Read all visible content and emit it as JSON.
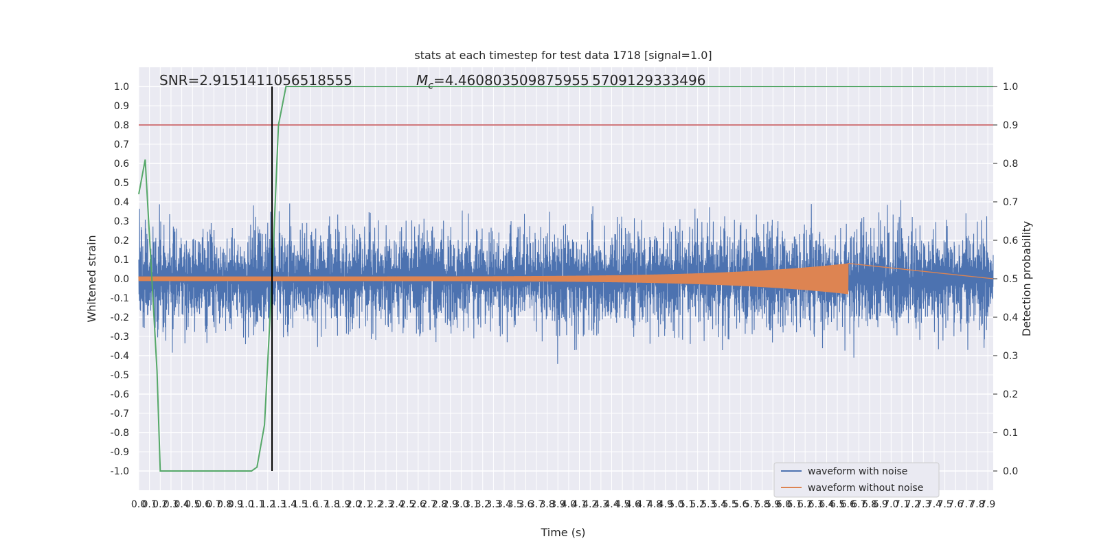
{
  "chart_data": {
    "type": "line",
    "title": "stats at each timestep for test data 1718 [signal=1.0]",
    "xlabel": "Time (s)",
    "ylabel": "Whitened strain",
    "y2label": "Detection probability",
    "xlim": [
      0.0,
      7.95
    ],
    "ylim": [
      -1.1,
      1.1
    ],
    "y2lim": [
      -0.05,
      1.05
    ],
    "x_ticks": [
      0.0,
      0.1,
      0.2,
      0.3,
      0.4,
      0.5,
      0.6,
      0.7,
      0.8,
      0.9,
      1.0,
      1.1,
      1.2,
      1.3,
      1.4,
      1.5,
      1.6,
      1.7,
      1.8,
      1.9,
      2.0,
      2.1,
      2.2,
      2.3,
      2.4,
      2.5,
      2.6,
      2.7,
      2.8,
      2.9,
      3.0,
      3.1,
      3.2,
      3.3,
      3.4,
      3.5,
      3.6,
      3.7,
      3.8,
      3.9,
      4.0,
      4.1,
      4.2,
      4.3,
      4.4,
      4.5,
      4.6,
      4.7,
      4.8,
      4.9,
      5.0,
      5.1,
      5.2,
      5.3,
      5.4,
      5.5,
      5.6,
      5.7,
      5.8,
      5.9,
      6.0,
      6.1,
      6.2,
      6.3,
      6.4,
      6.5,
      6.6,
      6.7,
      6.8,
      6.9,
      7.0,
      7.1,
      7.2,
      7.3,
      7.4,
      7.5,
      7.6,
      7.7,
      7.8,
      7.9
    ],
    "y_ticks": [
      -1.0,
      -0.9,
      -0.8,
      -0.7,
      -0.6,
      -0.5,
      -0.4,
      -0.3,
      -0.2,
      -0.1,
      0.0,
      0.1,
      0.2,
      0.3,
      0.4,
      0.5,
      0.6,
      0.7,
      0.8,
      0.9,
      1.0
    ],
    "y2_ticks": [
      0.0,
      0.1,
      0.2,
      0.3,
      0.4,
      0.5,
      0.6,
      0.7,
      0.8,
      0.9,
      1.0
    ],
    "grid": true,
    "legend_position": "lower-right",
    "annotations": {
      "snr": "SNR=2.9151411056518555",
      "mc_symbol": "M",
      "mc_subscript": "c",
      "mc_value_a": "=4.460803509875955",
      "mc_value_b": "5709129333496"
    },
    "series": [
      {
        "name": "waveform with noise",
        "color": "#4c72b0",
        "axis": "left",
        "kind": "noise",
        "envelope": 0.35,
        "x_range": [
          0.0,
          7.95
        ]
      },
      {
        "name": "waveform without noise",
        "color": "#dd8452",
        "axis": "left",
        "kind": "chirp",
        "x_range": [
          0.0,
          6.6
        ],
        "start_amplitude": 0.012,
        "peak_amplitude": 0.08
      },
      {
        "name": "detection probability",
        "color": "#55a868",
        "axis": "right",
        "x": [
          0.0,
          0.06,
          0.17,
          0.2,
          0.25,
          0.3,
          0.35,
          1.05,
          1.1,
          1.17,
          1.24,
          1.3,
          1.37,
          7.95
        ],
        "y": [
          0.72,
          0.81,
          0.26,
          0.0,
          0.0,
          0.0,
          0.0,
          0.0,
          0.01,
          0.12,
          0.5,
          0.9,
          1.0,
          1.0
        ]
      },
      {
        "name": "threshold",
        "color": "#c44e52",
        "axis": "right",
        "kind": "hline",
        "y": 0.9
      },
      {
        "name": "detection time",
        "color": "#000000",
        "axis": "right",
        "kind": "vline",
        "x": 1.24,
        "y_range": [
          0.0,
          1.0
        ]
      }
    ],
    "colors": {
      "background": "#eaeaf2",
      "grid": "#ffffff"
    }
  }
}
